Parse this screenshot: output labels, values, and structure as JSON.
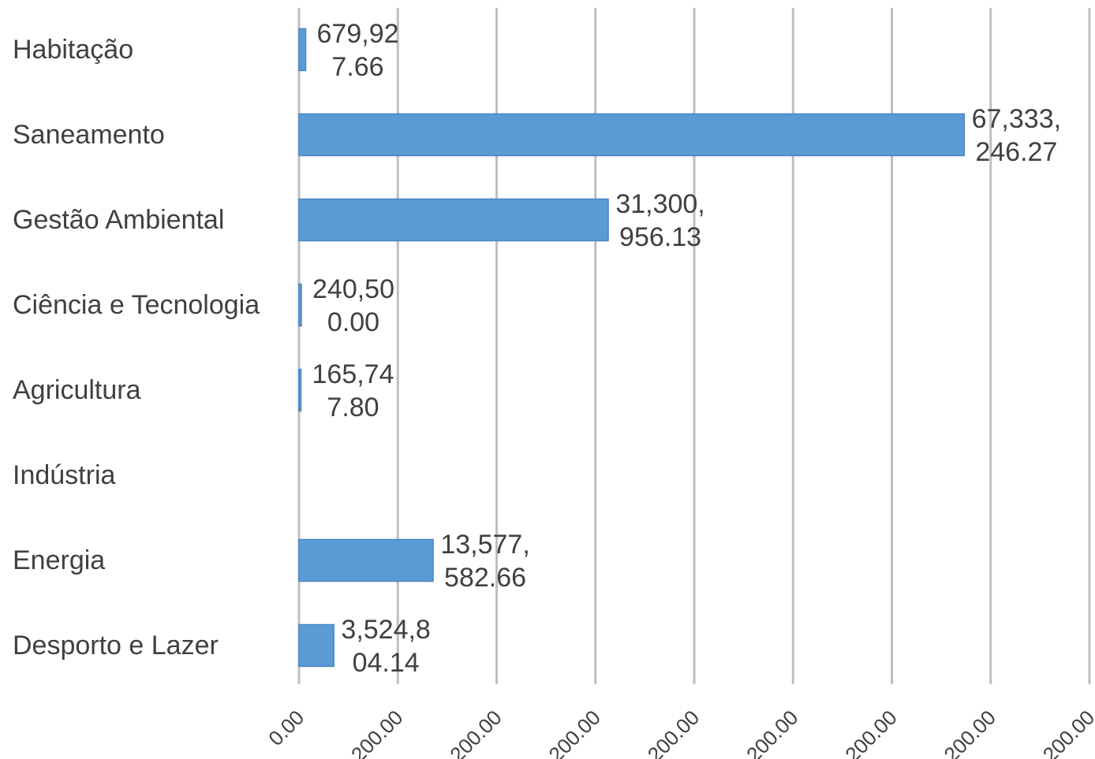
{
  "chart_data": {
    "type": "bar",
    "orientation": "horizontal",
    "categories": [
      "Habitação",
      "Saneamento",
      "Gestão Ambiental",
      "Ciência e Tecnologia",
      "Agricultura",
      "Indústria",
      "Energia",
      "Desporto e Lazer"
    ],
    "values": [
      679927.66,
      67333246.27,
      31300956.13,
      240500.0,
      165747.8,
      null,
      13577582.66,
      3524804.14
    ],
    "data_labels": [
      [
        "679,92",
        "7.66"
      ],
      [
        "67,333,",
        "246.27"
      ],
      [
        "31,300,",
        "956.13"
      ],
      [
        "240,50",
        "0.00"
      ],
      [
        "165,74",
        "7.80"
      ],
      null,
      [
        "13,577,",
        "582.66"
      ],
      [
        "3,524,8",
        "04.14"
      ]
    ],
    "xlim": [
      0,
      80000000
    ],
    "x_ticks": [
      0,
      10000000,
      20000000,
      30000000,
      40000000,
      50000000,
      60000000,
      70000000,
      80000000
    ],
    "x_tick_labels": [
      "0.00",
      "200.00",
      "200.00",
      "200.00",
      "200.00",
      "200.00",
      "200.00",
      "200.00",
      "200.00"
    ],
    "title": "",
    "xlabel": "",
    "ylabel": "",
    "grid": "vertical",
    "legend": "none",
    "bar_color": "#5b9bd5"
  }
}
